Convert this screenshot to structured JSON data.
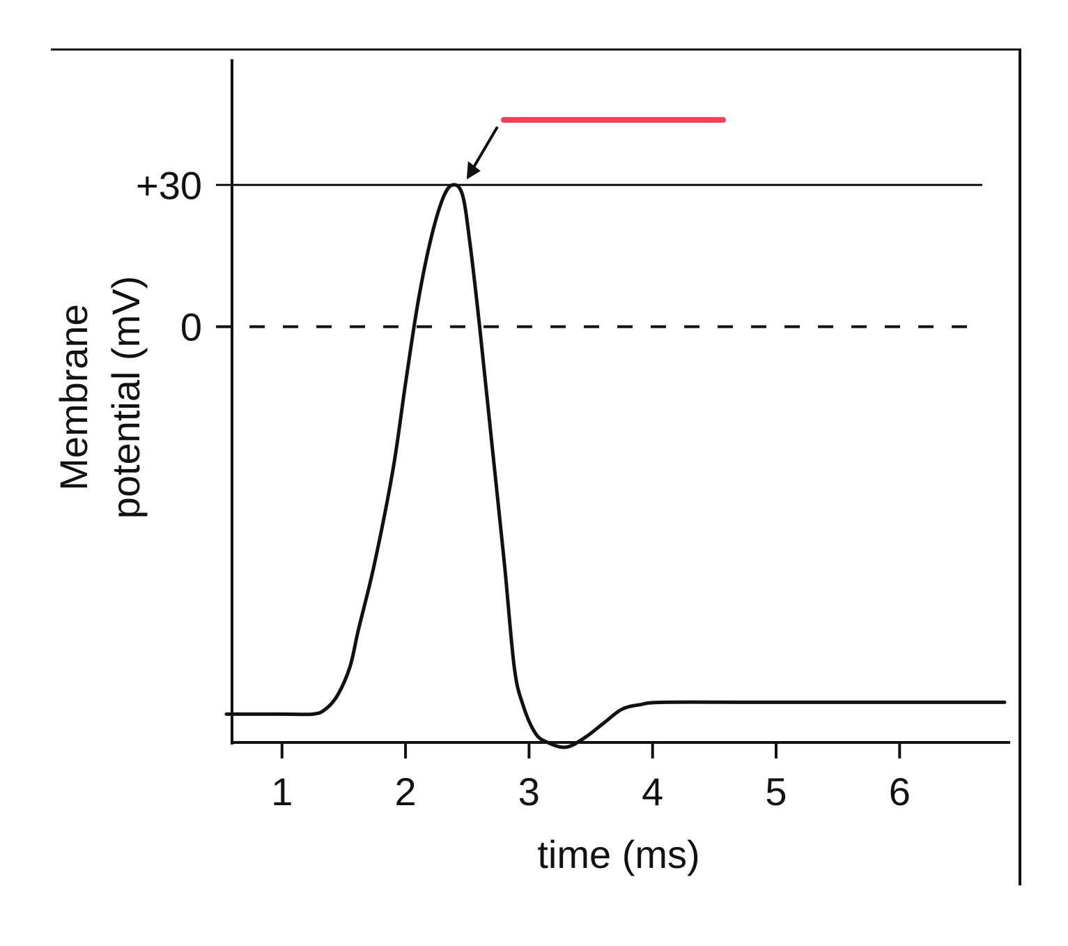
{
  "chart_data": {
    "type": "line",
    "title": "",
    "xlabel": "time (ms)",
    "ylabel_line1": "Membrane",
    "ylabel_line2": "potential (mV)",
    "x_ticks": [
      1,
      2,
      3,
      4,
      5,
      6
    ],
    "x_tick_labels": [
      "1",
      "2",
      "3",
      "4",
      "5",
      "6"
    ],
    "xlim": [
      0.55,
      6.85
    ],
    "y_ticks": [
      30,
      0
    ],
    "y_tick_labels": [
      "+30",
      "0"
    ],
    "ylim": [
      -88,
      60
    ],
    "reference_lines": [
      {
        "y": 30,
        "style": "solid"
      },
      {
        "y": 0,
        "style": "dashed"
      }
    ],
    "series": [
      {
        "points": [
          [
            0.55,
            -82
          ],
          [
            1.0,
            -82
          ],
          [
            1.25,
            -82
          ],
          [
            1.35,
            -81
          ],
          [
            1.45,
            -78
          ],
          [
            1.55,
            -72
          ],
          [
            1.62,
            -64
          ],
          [
            1.75,
            -50
          ],
          [
            1.9,
            -30
          ],
          [
            2.0,
            -12
          ],
          [
            2.1,
            5
          ],
          [
            2.2,
            18
          ],
          [
            2.3,
            27
          ],
          [
            2.38,
            30
          ],
          [
            2.46,
            28
          ],
          [
            2.52,
            18
          ],
          [
            2.6,
            0
          ],
          [
            2.7,
            -25
          ],
          [
            2.8,
            -50
          ],
          [
            2.88,
            -72
          ],
          [
            2.95,
            -80
          ],
          [
            3.05,
            -86
          ],
          [
            3.15,
            -88
          ],
          [
            3.3,
            -89
          ],
          [
            3.45,
            -87
          ],
          [
            3.6,
            -84
          ],
          [
            3.75,
            -81
          ],
          [
            3.9,
            -80
          ],
          [
            4.1,
            -79.5
          ],
          [
            5.0,
            -79.5
          ],
          [
            6.85,
            -79.5
          ]
        ]
      }
    ],
    "annotation": {
      "type": "arrow",
      "points_to": [
        2.45,
        30
      ],
      "label_placeholder_color": "#ff3b4f"
    },
    "colors": {
      "line": "#111111",
      "axis": "#111111",
      "highlight": "#ff3b4f"
    }
  }
}
